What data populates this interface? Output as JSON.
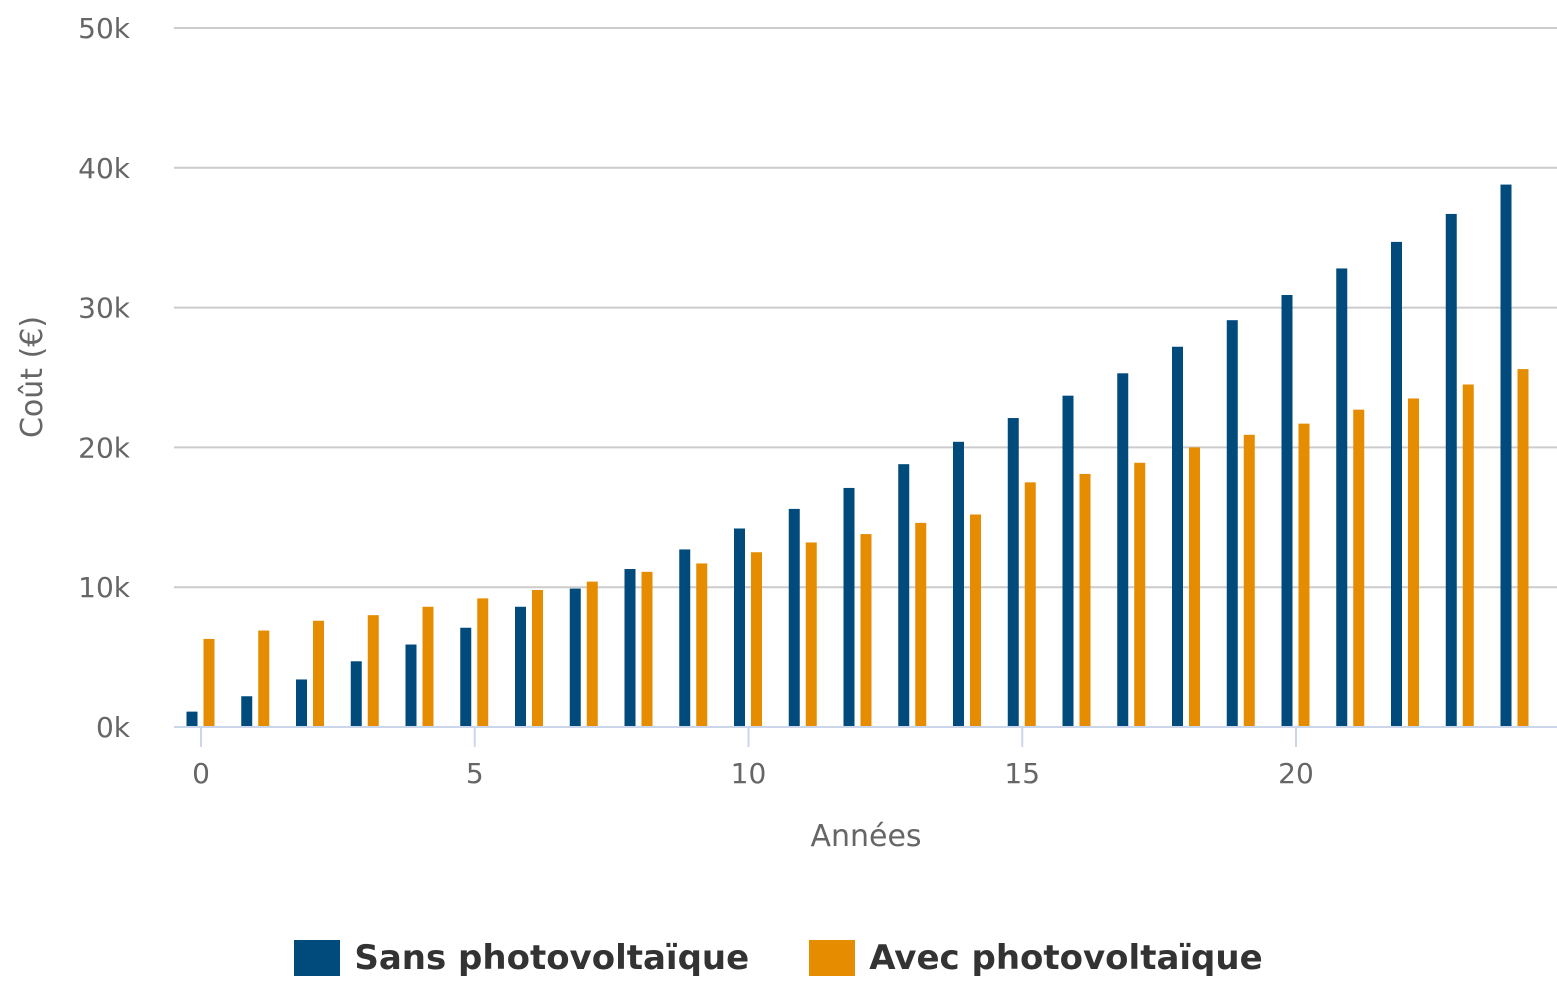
{
  "chart_data": {
    "type": "bar",
    "xlabel": "Années",
    "ylabel": "Coût (€)",
    "ylim": [
      0,
      50000
    ],
    "y_ticks": [
      0,
      10000,
      20000,
      30000,
      40000,
      50000
    ],
    "y_tick_labels": [
      "0k",
      "10k",
      "20k",
      "30k",
      "40k",
      "50k"
    ],
    "x_ticks": [
      0,
      5,
      10,
      15,
      20
    ],
    "x_tick_labels": [
      "0",
      "5",
      "10",
      "15",
      "20"
    ],
    "categories": [
      0,
      1,
      2,
      3,
      4,
      5,
      6,
      7,
      8,
      9,
      10,
      11,
      12,
      13,
      14,
      15,
      16,
      17,
      18,
      19,
      20,
      21,
      22,
      23,
      24
    ],
    "grid": true,
    "legend_position": "bottom-center",
    "series": [
      {
        "name": "Sans photovoltaïque",
        "color": "#004a7c",
        "values": [
          1100,
          2200,
          3400,
          4700,
          5900,
          7100,
          8600,
          9900,
          11300,
          12700,
          14200,
          15600,
          17100,
          18800,
          20400,
          22100,
          23700,
          25300,
          27200,
          29100,
          30900,
          32800,
          34700,
          36700,
          38800
        ]
      },
      {
        "name": "Avec photovoltaïque",
        "color": "#e58c00",
        "values": [
          6300,
          6900,
          7600,
          8000,
          8600,
          9200,
          9800,
          10400,
          11100,
          11700,
          12500,
          13200,
          13800,
          14600,
          15200,
          17500,
          18100,
          18900,
          20000,
          20900,
          21700,
          22700,
          23500,
          24500,
          25600
        ]
      }
    ]
  }
}
